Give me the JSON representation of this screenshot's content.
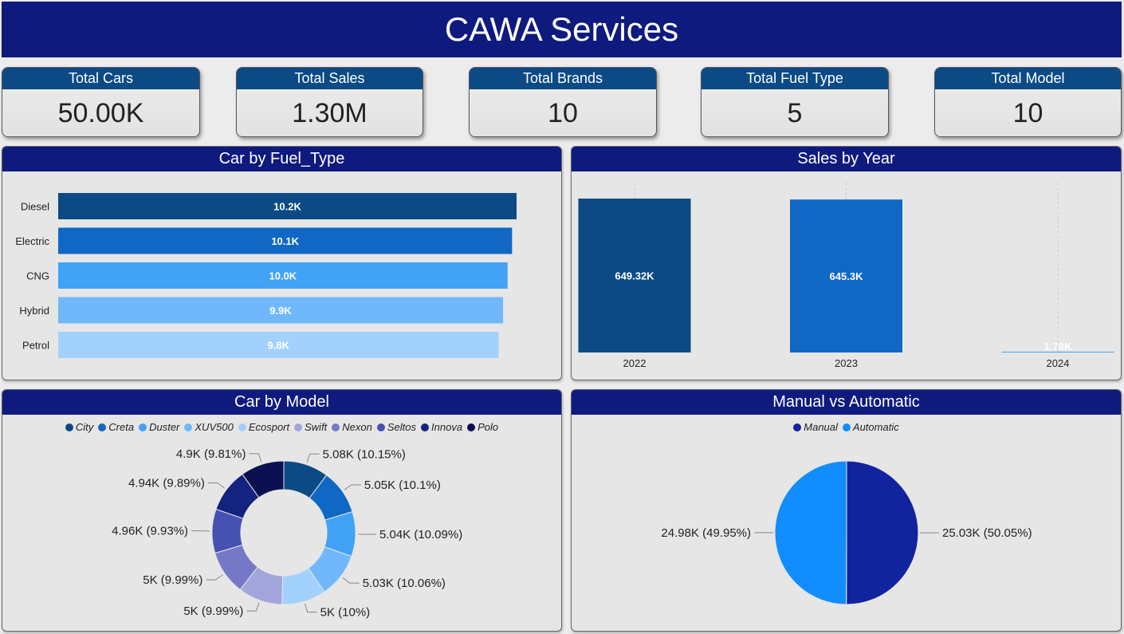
{
  "title": "CAWA Services",
  "kpis": [
    {
      "label": "Total Cars",
      "value": "50.00K"
    },
    {
      "label": "Total Sales",
      "value": "1.30M"
    },
    {
      "label": "Total Brands",
      "value": "10"
    },
    {
      "label": "Total Fuel Type",
      "value": "5"
    },
    {
      "label": "Total Model",
      "value": "10"
    }
  ],
  "panels": {
    "fuel": "Car by Fuel_Type",
    "year": "Sales by Year",
    "model": "Car by Model",
    "trans": "Manual vs Automatic"
  },
  "chart_data": [
    {
      "type": "bar",
      "orientation": "horizontal",
      "title": "Car by Fuel_Type",
      "categories": [
        "Diesel",
        "Electric",
        "CNG",
        "Hybrid",
        "Petrol"
      ],
      "values": [
        10200,
        10100,
        10000,
        9900,
        9800
      ],
      "data_labels": [
        "10.2K",
        "10.1K",
        "10.0K",
        "9.9K",
        "9.8K"
      ],
      "colors": [
        "#0b4a85",
        "#1068c4",
        "#42a2f5",
        "#70b8fb",
        "#a3d1fe"
      ]
    },
    {
      "type": "bar",
      "title": "Sales by Year",
      "categories": [
        "2022",
        "2023",
        "2024"
      ],
      "values": [
        649320,
        645300,
        1780
      ],
      "data_labels": [
        "649.32K",
        "645.3K",
        "1.78K"
      ],
      "colors": [
        "#0b4a85",
        "#1068c4",
        "#42a2f5"
      ]
    },
    {
      "type": "pie",
      "donut": true,
      "title": "Car by Model",
      "labels": [
        "City",
        "Creta",
        "Duster",
        "XUV500",
        "Ecosport",
        "Swift",
        "Nexon",
        "Seltos",
        "Innova",
        "Polo"
      ],
      "values": [
        5080,
        5050,
        5040,
        5030,
        5000,
        5000,
        5000,
        4960,
        4940,
        4900
      ],
      "data_labels": [
        "5.08K (10.15%)",
        "5.05K (10.1%)",
        "5.04K (10.09%)",
        "5.03K (10.06%)",
        "5K (10%)",
        "5K (9.99%)",
        "5K (9.99%)",
        "4.96K (9.93%)",
        "4.94K (9.89%)",
        "4.9K (9.81%)"
      ],
      "colors": [
        "#0b4a85",
        "#1068c4",
        "#42a2f5",
        "#70b8fb",
        "#a3d1fe",
        "#a3a6dc",
        "#7478c6",
        "#4651b2",
        "#132380",
        "#0b1050"
      ],
      "legend_position": "top-center"
    },
    {
      "type": "pie",
      "title": "Manual vs Automatic",
      "labels": [
        "Manual",
        "Automatic"
      ],
      "values": [
        25030,
        24980
      ],
      "data_labels": [
        "25.03K (50.05%)",
        "24.98K (49.95%)"
      ],
      "colors": [
        "#12239e",
        "#118dff"
      ],
      "legend_position": "top-center"
    }
  ]
}
